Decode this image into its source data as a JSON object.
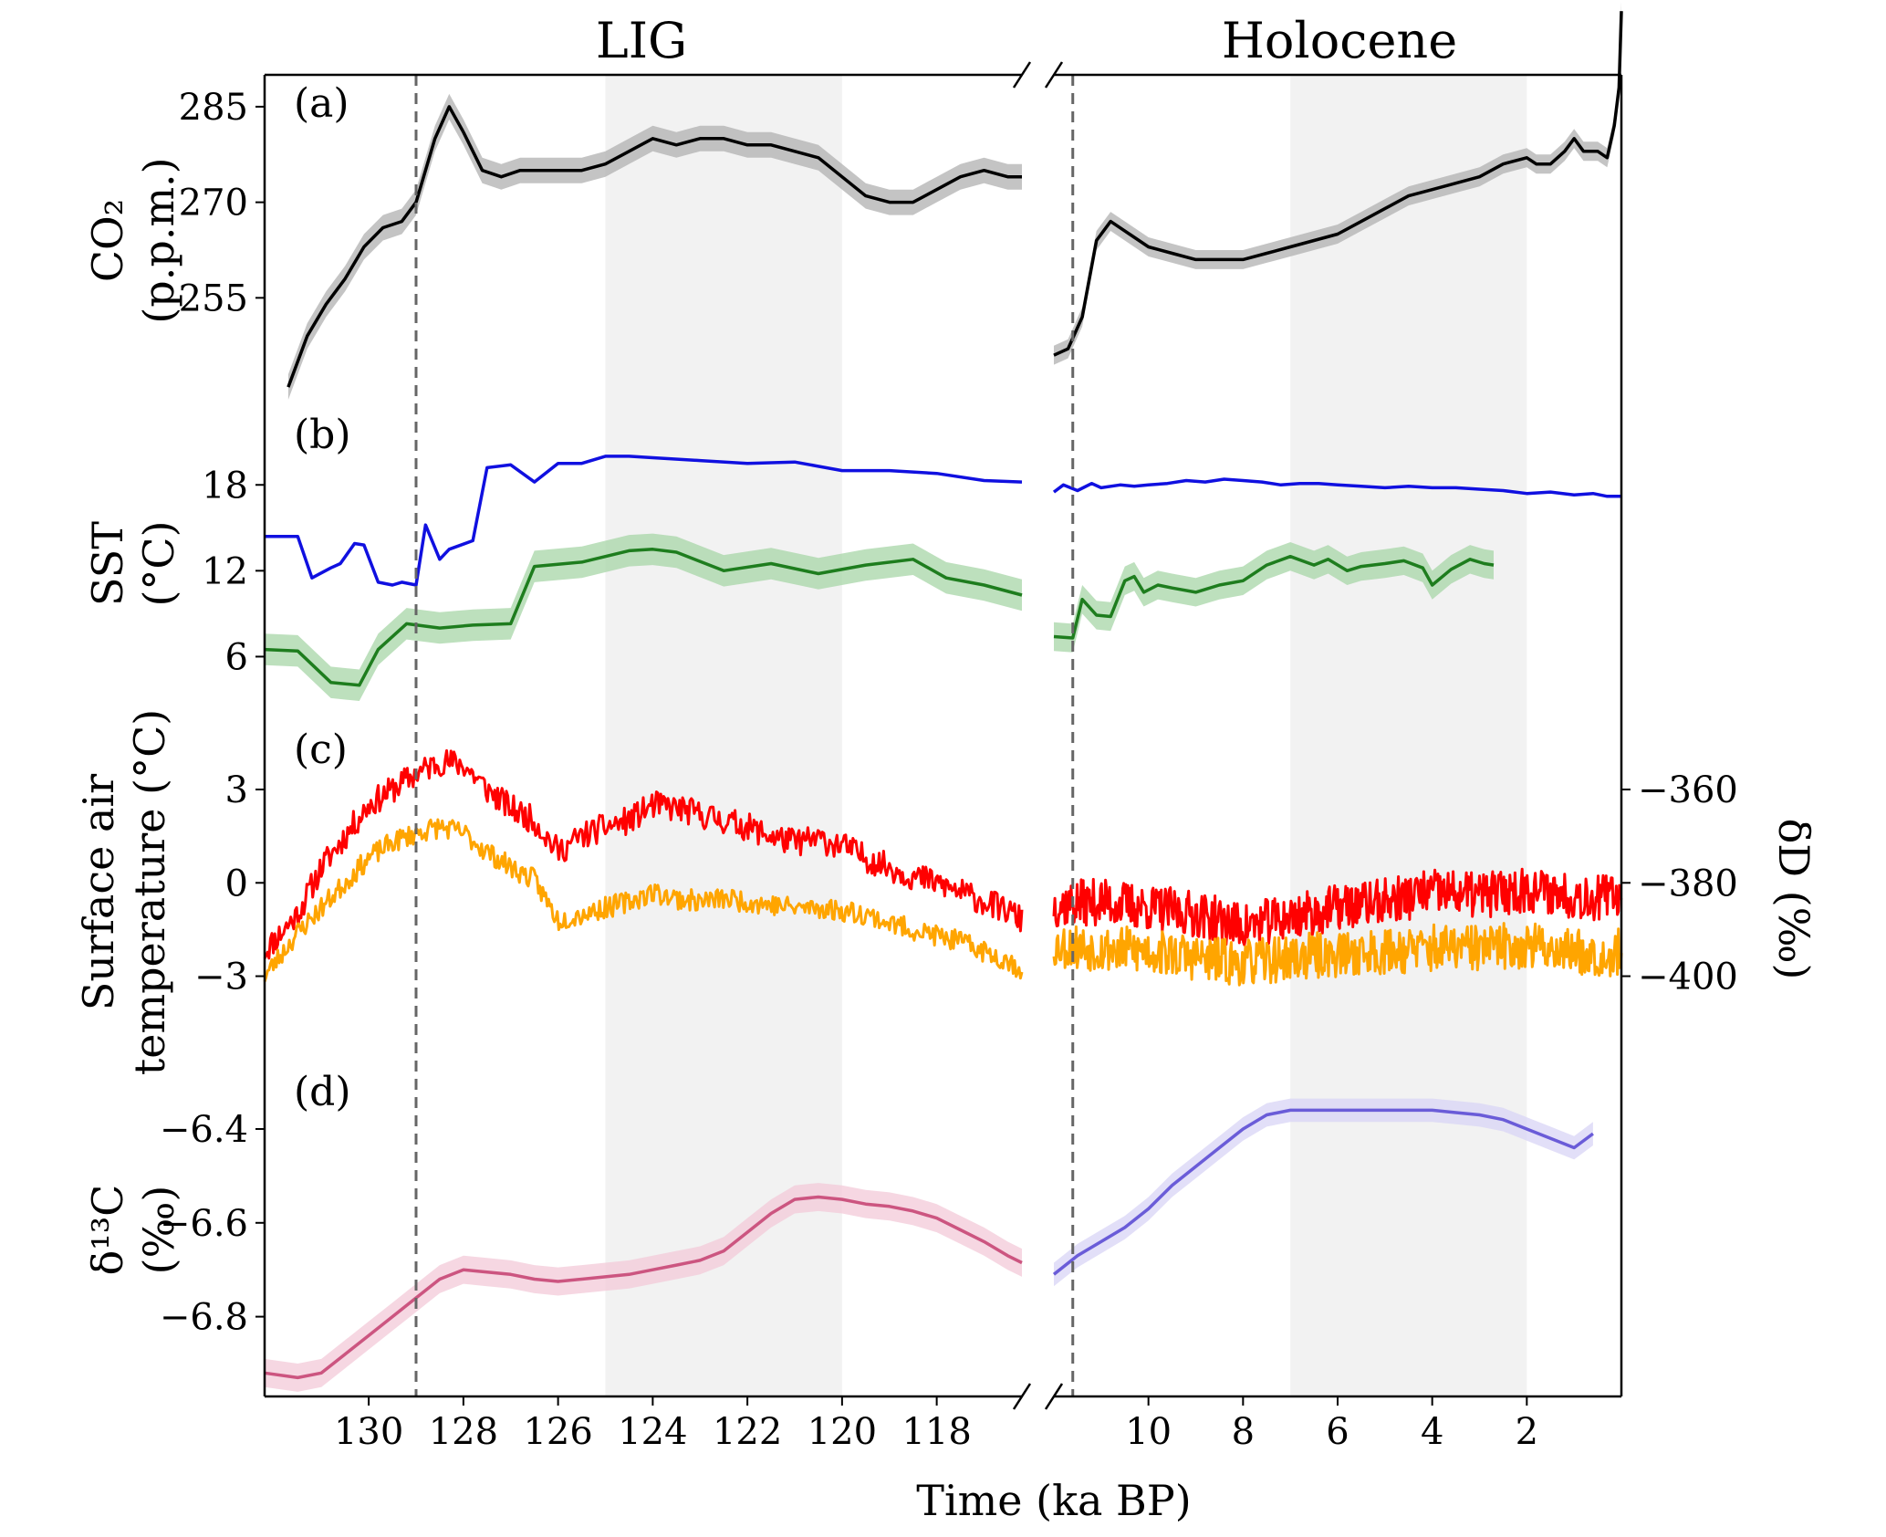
{
  "chart_data": {
    "type": "line",
    "titles": {
      "lig": "LIG",
      "holo": "Holocene"
    },
    "xlabel": "Time (ka BP)",
    "lig_xlim": [
      132.2,
      116.2
    ],
    "holo_xlim": [
      12,
      0
    ],
    "lig_xticks": [
      "130",
      "128",
      "126",
      "124",
      "122",
      "120",
      "118"
    ],
    "holo_xticks": [
      "10",
      "8",
      "6",
      "4",
      "2"
    ],
    "lig_xtick_values": [
      130,
      128,
      126,
      124,
      122,
      120,
      118
    ],
    "holo_xtick_values": [
      10,
      8,
      6,
      4,
      2
    ],
    "shading": {
      "lig": [
        125,
        120
      ],
      "holo": [
        7,
        2
      ]
    },
    "dashed_lines": {
      "lig": 129,
      "holo": 11.6
    },
    "panels": [
      {
        "id": "a",
        "label": "(a)",
        "ylabel_lines": [
          "CO₂",
          "(p.p.m.)"
        ],
        "yrange": [
          238,
          290
        ],
        "yticks": [
          "255",
          "270",
          "285"
        ],
        "ytick_values": [
          255,
          270,
          285
        ],
        "series": [
          {
            "part": "lig",
            "color": "#000000",
            "band": 2.0,
            "band_color": "#b0b0b0",
            "x": [
              131.7,
              131.3,
              130.9,
              130.5,
              130.1,
              129.7,
              129.3,
              129.0,
              128.6,
              128.3,
              128.0,
              127.6,
              127.2,
              126.8,
              126.4,
              126.0,
              125.5,
              125.0,
              124.5,
              124.0,
              123.5,
              123.0,
              122.5,
              122.0,
              121.5,
              121.0,
              120.5,
              120.0,
              119.5,
              119.0,
              118.5,
              118.0,
              117.5,
              117.0,
              116.5,
              116.2
            ],
            "y": [
              241,
              249,
              254,
              258,
              263,
              266,
              267,
              270,
              280,
              285,
              281,
              275,
              274,
              275,
              275,
              275,
              275,
              276,
              278,
              280,
              279,
              280,
              280,
              279,
              279,
              278,
              277,
              274,
              271,
              270,
              270,
              272,
              274,
              275,
              274,
              274
            ]
          },
          {
            "part": "holo",
            "color": "#000000",
            "band": 1.5,
            "band_color": "#b0b0b0",
            "x": [
              12.0,
              11.7,
              11.4,
              11.1,
              10.8,
              10.4,
              10.0,
              9.5,
              9.0,
              8.5,
              8.0,
              7.5,
              7.0,
              6.5,
              6.0,
              5.5,
              5.0,
              4.5,
              4.0,
              3.5,
              3.0,
              2.5,
              2.0,
              1.8,
              1.5,
              1.2,
              1.0,
              0.8,
              0.5,
              0.3,
              0.15,
              0.05,
              0.0
            ],
            "y": [
              246,
              247,
              252,
              264,
              267,
              265,
              263,
              262,
              261,
              261,
              261,
              262,
              263,
              264,
              265,
              267,
              269,
              271,
              272,
              273,
              274,
              276,
              277,
              276,
              276,
              278,
              280,
              278,
              278,
              277,
              282,
              288,
              300
            ]
          }
        ]
      },
      {
        "id": "b",
        "label": "(b)",
        "ylabel_lines": [
          "SST",
          "(°C)"
        ],
        "yrange": [
          1.5,
          23.5
        ],
        "yticks": [
          "6",
          "12",
          "18"
        ],
        "ytick_values": [
          6,
          12,
          18
        ],
        "series": [
          {
            "part": "lig",
            "color": "#1010e0",
            "band": 0,
            "x": [
              132.2,
              131.5,
              131.2,
              130.8,
              130.6,
              130.3,
              130.1,
              129.8,
              129.5,
              129.3,
              129.0,
              128.8,
              128.5,
              128.3,
              127.8,
              127.5,
              127.0,
              126.5,
              126.0,
              125.5,
              125.0,
              124.5,
              124.0,
              123.0,
              122.0,
              121.0,
              120.0,
              119.0,
              118.0,
              117.0,
              116.2
            ],
            "y": [
              14.4,
              14.4,
              11.5,
              12.2,
              12.5,
              13.9,
              13.8,
              11.2,
              11.0,
              11.2,
              11.0,
              15.2,
              12.8,
              13.5,
              14.1,
              19.2,
              19.4,
              18.2,
              19.5,
              19.5,
              20.0,
              20.0,
              19.9,
              19.7,
              19.5,
              19.6,
              19.0,
              19.0,
              18.8,
              18.3,
              18.2
            ]
          },
          {
            "part": "lig",
            "color": "#1e7d1e",
            "band": 1.1,
            "band_color": "#a7d6a7",
            "x": [
              132.2,
              131.5,
              130.8,
              130.2,
              129.8,
              129.2,
              128.5,
              127.8,
              127.0,
              126.5,
              125.5,
              124.5,
              124.0,
              123.5,
              122.5,
              121.5,
              120.5,
              119.5,
              118.5,
              117.8,
              117.0,
              116.2
            ],
            "y": [
              6.5,
              6.4,
              4.2,
              4.0,
              6.5,
              8.3,
              8.0,
              8.2,
              8.3,
              12.3,
              12.6,
              13.4,
              13.5,
              13.3,
              12.0,
              12.5,
              11.8,
              12.4,
              12.8,
              11.5,
              11.0,
              10.3
            ]
          },
          {
            "part": "holo",
            "color": "#1010e0",
            "band": 0,
            "x": [
              12.0,
              11.8,
              11.5,
              11.2,
              11.0,
              10.6,
              10.3,
              10.0,
              9.6,
              9.2,
              8.8,
              8.4,
              8.0,
              7.6,
              7.2,
              6.8,
              6.4,
              6.0,
              5.5,
              5.0,
              4.5,
              4.0,
              3.5,
              3.0,
              2.5,
              2.0,
              1.5,
              1.0,
              0.6,
              0.3,
              0.0
            ],
            "y": [
              17.5,
              18.0,
              17.6,
              18.1,
              17.8,
              18.0,
              17.9,
              18.0,
              18.1,
              18.3,
              18.2,
              18.4,
              18.3,
              18.2,
              18.0,
              18.1,
              18.1,
              18.0,
              17.9,
              17.8,
              17.9,
              17.8,
              17.8,
              17.7,
              17.6,
              17.4,
              17.5,
              17.3,
              17.4,
              17.2,
              17.2
            ]
          },
          {
            "part": "holo",
            "color": "#1e7d1e",
            "band": 1.0,
            "band_color": "#a7d6a7",
            "x": [
              12.0,
              11.6,
              11.4,
              11.1,
              10.8,
              10.5,
              10.3,
              10.1,
              9.8,
              9.5,
              9.0,
              8.5,
              8.0,
              7.5,
              7.0,
              6.5,
              6.2,
              5.8,
              5.5,
              5.0,
              4.6,
              4.2,
              4.0,
              3.6,
              3.2,
              2.9,
              2.7
            ],
            "y": [
              7.4,
              7.3,
              10.0,
              8.9,
              8.8,
              11.3,
              11.6,
              10.5,
              11.0,
              10.8,
              10.5,
              11.0,
              11.3,
              12.4,
              13.0,
              12.4,
              12.8,
              12.0,
              12.3,
              12.5,
              12.7,
              12.2,
              11.0,
              12.1,
              12.8,
              12.5,
              12.4
            ]
          }
        ]
      },
      {
        "id": "c",
        "label": "(c)",
        "ylabel_lines": [
          "Surface air",
          "temperature (°C)"
        ],
        "right_ylabel": "δD (‰)",
        "yrange": [
          -5.8,
          5.2
        ],
        "yticks": [
          "−3",
          "0",
          "3"
        ],
        "ytick_values": [
          -3,
          0,
          3
        ],
        "right_yticks": [
          "−360",
          "−380",
          "−400"
        ],
        "right_ytick_y": [
          3.0,
          0.0,
          -3.0
        ],
        "series": [
          {
            "part": "lig",
            "color": "#ff0000",
            "noise": 0.45,
            "seed": 11,
            "x": [
              132.2,
              131.5,
              131.0,
              130.5,
              130.0,
              129.5,
              129.0,
              128.5,
              128.0,
              127.5,
              127.0,
              126.5,
              126.0,
              125.5,
              125.0,
              124.5,
              124.0,
              123.5,
              123.0,
              122.5,
              122.0,
              121.5,
              121.0,
              120.5,
              120.0,
              119.5,
              119.0,
              118.5,
              118.0,
              117.5,
              117.0,
              116.5,
              116.2
            ],
            "y": [
              -2.2,
              -1.0,
              0.5,
              1.5,
              2.5,
              3.0,
              3.5,
              3.9,
              3.8,
              3.0,
              2.4,
              2.0,
              1.0,
              1.5,
              1.8,
              2.0,
              2.5,
              2.4,
              2.2,
              2.0,
              1.8,
              1.5,
              1.3,
              1.4,
              1.2,
              0.8,
              0.5,
              0.2,
              0.0,
              -0.3,
              -0.6,
              -0.9,
              -1.2
            ]
          },
          {
            "part": "lig",
            "color": "#ffa500",
            "noise": 0.35,
            "seed": 23,
            "x": [
              132.2,
              131.5,
              131.0,
              130.5,
              130.0,
              129.5,
              129.0,
              128.5,
              128.0,
              127.5,
              127.0,
              126.5,
              126.0,
              125.5,
              125.0,
              124.5,
              124.0,
              123.5,
              123.0,
              122.5,
              122.0,
              121.5,
              121.0,
              120.5,
              120.0,
              119.5,
              119.0,
              118.5,
              118.0,
              117.5,
              117.0,
              116.5,
              116.2
            ],
            "y": [
              -3.0,
              -1.6,
              -0.8,
              0.0,
              0.8,
              1.3,
              1.6,
              1.8,
              1.6,
              1.0,
              0.5,
              0.1,
              -1.2,
              -1.0,
              -0.8,
              -0.6,
              -0.3,
              -0.5,
              -0.6,
              -0.5,
              -0.6,
              -0.7,
              -0.8,
              -0.8,
              -0.9,
              -1.0,
              -1.3,
              -1.5,
              -1.7,
              -1.9,
              -2.2,
              -2.5,
              -2.8
            ]
          },
          {
            "part": "holo",
            "color": "#ff0000",
            "noise": 0.75,
            "seed": 37,
            "x": [
              12.0,
              11.0,
              10.0,
              9.0,
              8.0,
              7.0,
              6.0,
              5.0,
              4.0,
              3.0,
              2.0,
              1.0,
              0.3,
              0.0
            ],
            "y": [
              -0.7,
              -0.6,
              -0.8,
              -1.0,
              -1.4,
              -1.1,
              -0.8,
              -0.6,
              -0.3,
              -0.4,
              -0.2,
              -0.4,
              -0.5,
              -0.3
            ]
          },
          {
            "part": "holo",
            "color": "#ffa500",
            "noise": 0.75,
            "seed": 53,
            "x": [
              12.0,
              11.0,
              10.0,
              9.0,
              8.0,
              7.0,
              6.0,
              5.0,
              4.0,
              3.0,
              2.0,
              1.0,
              0.3,
              0.0
            ],
            "y": [
              -2.0,
              -2.1,
              -2.2,
              -2.4,
              -2.6,
              -2.4,
              -2.3,
              -2.2,
              -2.1,
              -2.1,
              -2.0,
              -2.2,
              -2.3,
              -2.2
            ]
          }
        ]
      },
      {
        "id": "d",
        "label": "(d)",
        "ylabel_lines": [
          "δ¹³C",
          "(‰)"
        ],
        "yrange": [
          -6.97,
          -6.26
        ],
        "yticks": [
          "−6.4",
          "−6.6",
          "−6.8"
        ],
        "ytick_values": [
          -6.4,
          -6.6,
          -6.8
        ],
        "series": [
          {
            "part": "lig",
            "color": "#cc5580",
            "band": 0.03,
            "band_color": "#f3c9d8",
            "x": [
              132.2,
              131.5,
              131.0,
              130.5,
              130.0,
              129.5,
              129.0,
              128.5,
              128.0,
              127.5,
              127.0,
              126.5,
              126.0,
              125.5,
              125.0,
              124.5,
              124.0,
              123.5,
              123.0,
              122.5,
              122.0,
              121.5,
              121.0,
              120.5,
              120.0,
              119.5,
              119.0,
              118.5,
              118.0,
              117.5,
              117.0,
              116.5,
              116.2
            ],
            "y": [
              -6.92,
              -6.93,
              -6.92,
              -6.88,
              -6.84,
              -6.8,
              -6.76,
              -6.72,
              -6.7,
              -6.705,
              -6.71,
              -6.72,
              -6.725,
              -6.72,
              -6.715,
              -6.71,
              -6.7,
              -6.69,
              -6.68,
              -6.66,
              -6.62,
              -6.58,
              -6.55,
              -6.545,
              -6.55,
              -6.56,
              -6.565,
              -6.575,
              -6.59,
              -6.615,
              -6.64,
              -6.67,
              -6.685
            ]
          },
          {
            "part": "holo",
            "color": "#6a5cd8",
            "band": 0.025,
            "band_color": "#d8d4f5",
            "x": [
              12.0,
              11.5,
              11.0,
              10.5,
              10.0,
              9.5,
              9.0,
              8.5,
              8.0,
              7.5,
              7.0,
              6.5,
              6.0,
              5.5,
              5.0,
              4.5,
              4.0,
              3.5,
              3.0,
              2.5,
              2.0,
              1.5,
              1.0,
              0.6
            ],
            "y": [
              -6.71,
              -6.67,
              -6.64,
              -6.61,
              -6.57,
              -6.52,
              -6.48,
              -6.44,
              -6.4,
              -6.37,
              -6.36,
              -6.36,
              -6.36,
              -6.36,
              -6.36,
              -6.36,
              -6.36,
              -6.365,
              -6.37,
              -6.38,
              -6.4,
              -6.42,
              -6.44,
              -6.41
            ]
          }
        ]
      }
    ]
  }
}
